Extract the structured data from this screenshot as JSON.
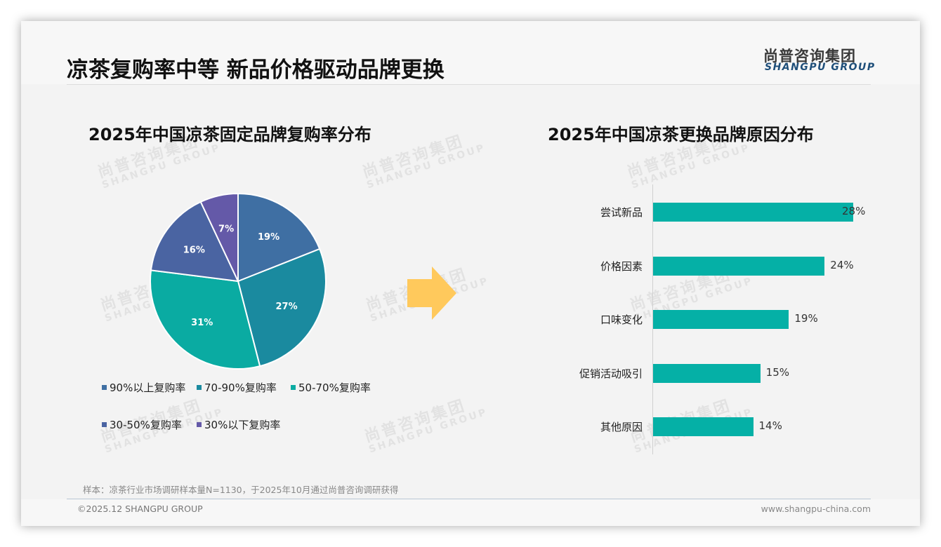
{
  "header": {
    "title": "凉茶复购率中等 新品价格驱动品牌更换",
    "logo_cn": "尚普咨询集团",
    "logo_en": "SHANGPU GROUP"
  },
  "watermark": {
    "cn": "尚普咨询集团",
    "en": "SHANGPU GROUP"
  },
  "left_chart": {
    "title": "2025年中国凉茶固定品牌复购率分布",
    "slices": [
      {
        "label": "90%以上复购率",
        "value": 19,
        "display": "19%",
        "color": "#3f6fa3"
      },
      {
        "label": "70-90%复购率",
        "value": 27,
        "display": "27%",
        "color": "#1a8a9f"
      },
      {
        "label": "50-70%复购率",
        "value": 31,
        "display": "31%",
        "color": "#0aaba2"
      },
      {
        "label": "30-50%复购率",
        "value": 16,
        "display": "16%",
        "color": "#4a64a2"
      },
      {
        "label": "30%以下复购率",
        "value": 7,
        "display": "7%",
        "color": "#6459a8"
      }
    ]
  },
  "arrow": {
    "icon": "right-arrow-icon",
    "color": "#ffc95c"
  },
  "right_chart": {
    "title": "2025年中国凉茶更换品牌原因分布",
    "bar_color": "#05b0a6",
    "bars": [
      {
        "label": "尝试新品",
        "value": 28,
        "display": "28%"
      },
      {
        "label": "价格因素",
        "value": 24,
        "display": "24%"
      },
      {
        "label": "口味变化",
        "value": 19,
        "display": "19%"
      },
      {
        "label": "促销活动吸引",
        "value": 15,
        "display": "15%"
      },
      {
        "label": "其他原因",
        "value": 14,
        "display": "14%"
      }
    ]
  },
  "footer": {
    "note": "样本：凉茶行业市场调研样本量N=1130，于2025年10月通过尚普咨询调研获得",
    "copyright": "©2025.12 SHANGPU GROUP",
    "website": "www.shangpu-china.com"
  },
  "chart_data": [
    {
      "type": "pie",
      "title": "2025年中国凉茶固定品牌复购率分布",
      "categories": [
        "90%以上复购率",
        "70-90%复购率",
        "50-70%复购率",
        "30-50%复购率",
        "30%以下复购率"
      ],
      "values": [
        19,
        27,
        31,
        16,
        7
      ],
      "unit": "%",
      "legend_position": "bottom",
      "start_angle": "12 o'clock, clockwise"
    },
    {
      "type": "bar",
      "orientation": "horizontal",
      "title": "2025年中国凉茶更换品牌原因分布",
      "categories": [
        "尝试新品",
        "价格因素",
        "口味变化",
        "促销活动吸引",
        "其他原因"
      ],
      "values": [
        28,
        24,
        19,
        15,
        14
      ],
      "unit": "%",
      "xlabel": "",
      "ylabel": "",
      "grid": false,
      "data_labels": true
    }
  ]
}
